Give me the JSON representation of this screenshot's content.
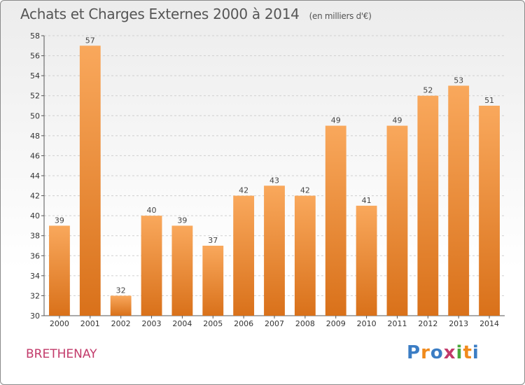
{
  "header": {
    "title": "Achats et Charges Externes 2000 à 2014",
    "subtitle": "(en milliers d'€)"
  },
  "footer": {
    "location": "BRETHENAY",
    "logo": "Proxiti"
  },
  "colors": {
    "bar_light": "#f9a85c",
    "bar_dark": "#d9711a",
    "grid": "#cfcfcf",
    "location": "#c23a6a",
    "logo_letters": [
      "#3b7dc4",
      "#f08a1c",
      "#3b7dc4",
      "#c23a6a",
      "#4aa83c",
      "#f08a1c",
      "#3b7dc4"
    ]
  },
  "chart_data": {
    "type": "bar",
    "title": "Achats et Charges Externes 2000 à 2014",
    "subtitle": "(en milliers d'€)",
    "categories": [
      "2000",
      "2001",
      "2002",
      "2003",
      "2004",
      "2005",
      "2006",
      "2007",
      "2008",
      "2009",
      "2010",
      "2011",
      "2012",
      "2013",
      "2014"
    ],
    "values": [
      39,
      57,
      32,
      40,
      39,
      37,
      42,
      43,
      42,
      49,
      41,
      49,
      52,
      53,
      51
    ],
    "ylim": [
      30,
      58
    ],
    "yticks": [
      30,
      32,
      34,
      36,
      38,
      40,
      42,
      44,
      46,
      48,
      50,
      52,
      54,
      56,
      58
    ],
    "grid": "horizontal dashed",
    "xlabel": "",
    "ylabel": ""
  }
}
